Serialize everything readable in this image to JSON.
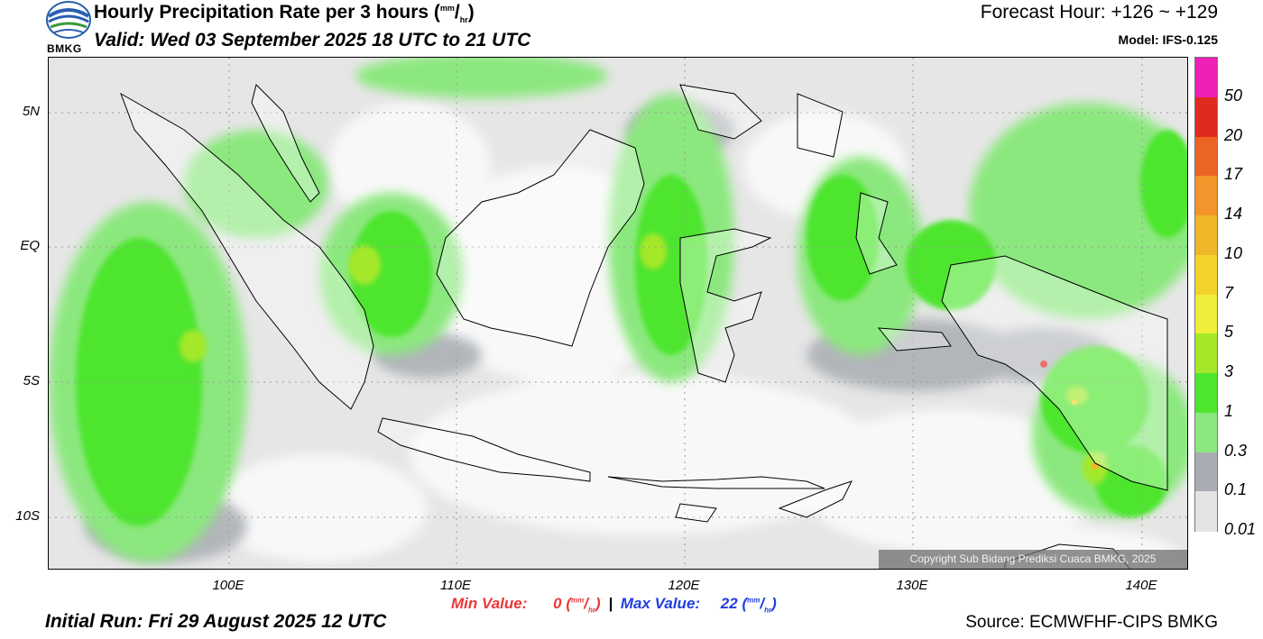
{
  "header": {
    "logo_text": "BMKG",
    "title": "Hourly Precipitation Rate per 3 hours (",
    "title_unit_num": "mm",
    "title_unit_den": "hr",
    "title_close": ")",
    "valid": "Valid: Wed 03 September 2025 18 UTC to 21 UTC",
    "forecast_hour": "Forecast Hour: +126 ~ +129",
    "model": "Model: IFS-0.125"
  },
  "map": {
    "lat_labels": [
      "5N",
      "EQ",
      "5S",
      "10S"
    ],
    "lon_labels": [
      "100E",
      "110E",
      "120E",
      "130E",
      "140E"
    ],
    "copyright": "Copyright Sub Bidang Prediksi Cuaca BMKG, 2025"
  },
  "legend": {
    "labels": [
      "50",
      "20",
      "17",
      "14",
      "10",
      "7",
      "5",
      "3",
      "1",
      "0.3",
      "0.1",
      "0.01"
    ],
    "colors": [
      "#f01fb8",
      "#e12a1f",
      "#ec6424",
      "#f3952a",
      "#f0b629",
      "#f3d32a",
      "#efee3a",
      "#a4e829",
      "#4ee52f",
      "#8be87e",
      "#a9adb3",
      "#e4e4e4"
    ]
  },
  "footer": {
    "min_label": "Min Value:",
    "min_value": "0",
    "max_label": "Max Value:",
    "max_value": "22",
    "unit_num": "mm",
    "unit_den": "hr",
    "separator": "|",
    "initial_run": "Initial Run: Fri 29 August 2025 12 UTC",
    "source": "Source: ECMWFHF-CIPS BMKG"
  }
}
